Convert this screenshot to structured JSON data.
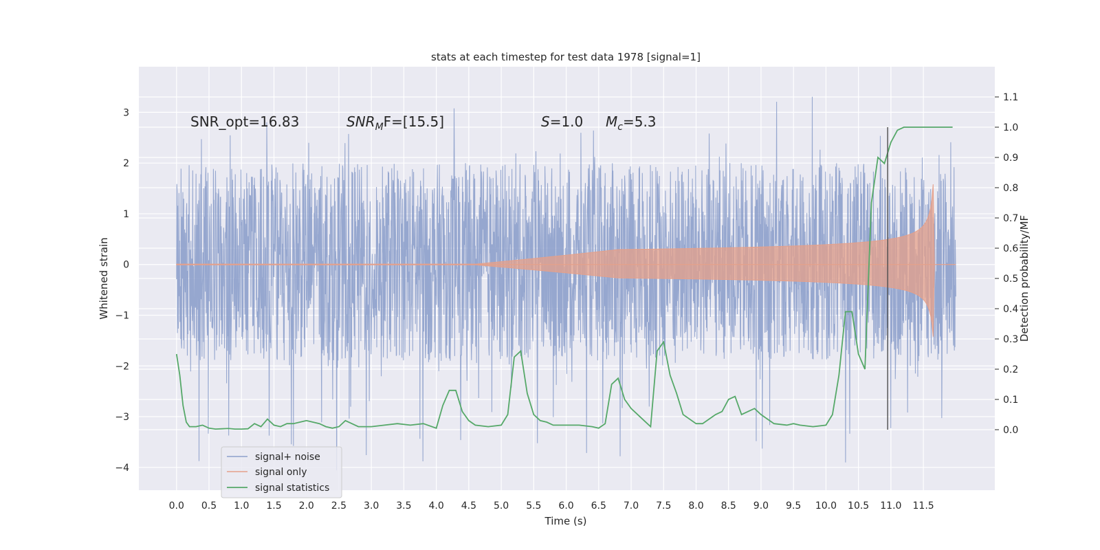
{
  "chart_data": {
    "type": "line",
    "title": "stats at each timestep for test data 1978 [signal=1]",
    "xlabel": "Time (s)",
    "ylabel": "Whitened strain",
    "ylabel_right": "Detection probability/MF",
    "xlim": [
      -0.58,
      12.6
    ],
    "ylim": [
      -4.45,
      3.9
    ],
    "ylim_right": [
      -0.2,
      1.2
    ],
    "grid": true,
    "legend_placement": "lower-left",
    "x_ticks": [
      "0.0",
      "0.5",
      "1.0",
      "1.5",
      "2.0",
      "2.5",
      "3.0",
      "3.5",
      "4.0",
      "4.5",
      "5.0",
      "5.5",
      "6.0",
      "6.5",
      "7.0",
      "7.5",
      "8.0",
      "8.5",
      "9.0",
      "9.5",
      "10.0",
      "10.5",
      "11.0",
      "11.5"
    ],
    "y_ticks": [
      "3",
      "2",
      "1",
      "0",
      "−1",
      "−2",
      "−3",
      "−4"
    ],
    "y_ticks_right": [
      "1.1",
      "1.0",
      "0.9",
      "0.8",
      "0.7",
      "0.6",
      "0.5",
      "0.4",
      "0.3",
      "0.2",
      "0.1",
      "0.0"
    ],
    "annotations": {
      "snr_opt": "SNR_opt=16.83",
      "snr_mf_main": "SNR",
      "snr_mf_sub": "M",
      "snr_mf_rest": "F=[15.5]",
      "s_sym": "S",
      "s_val": "=1.0",
      "mc_sym": "M",
      "mc_sub": "c",
      "mc_val": "=5.3"
    },
    "series": [
      {
        "name": "signal+ noise",
        "color": "#8da0cb",
        "axis": "left",
        "duration": 12.0,
        "envelope": {
          "typical_low": -1.8,
          "typical_high": 2.2,
          "peak_high": 3.5,
          "peak_low": -4.1
        }
      },
      {
        "name": "signal only",
        "color": "#e5a08a",
        "axis": "left",
        "chirp_start": 5.0,
        "merger_time": 11.67,
        "peak_amplitude": 1.8
      },
      {
        "name": "signal statistics",
        "color": "#55a868",
        "axis": "right",
        "x": [
          0.0,
          0.05,
          0.1,
          0.15,
          0.2,
          0.3,
          0.4,
          0.5,
          0.6,
          0.7,
          0.8,
          0.9,
          1.0,
          1.1,
          1.2,
          1.3,
          1.4,
          1.5,
          1.6,
          1.7,
          1.8,
          1.9,
          2.0,
          2.1,
          2.2,
          2.3,
          2.4,
          2.5,
          2.6,
          2.7,
          2.8,
          2.9,
          3.0,
          3.2,
          3.4,
          3.6,
          3.8,
          4.0,
          4.1,
          4.2,
          4.3,
          4.4,
          4.5,
          4.6,
          4.8,
          5.0,
          5.1,
          5.2,
          5.3,
          5.4,
          5.5,
          5.6,
          5.7,
          5.8,
          6.0,
          6.2,
          6.4,
          6.5,
          6.6,
          6.7,
          6.8,
          6.9,
          7.0,
          7.2,
          7.3,
          7.4,
          7.5,
          7.6,
          7.7,
          7.8,
          8.0,
          8.1,
          8.2,
          8.3,
          8.4,
          8.5,
          8.6,
          8.7,
          8.8,
          8.9,
          9.0,
          9.2,
          9.4,
          9.5,
          9.6,
          9.8,
          10.0,
          10.1,
          10.2,
          10.3,
          10.4,
          10.5,
          10.6,
          10.7,
          10.8,
          10.9,
          11.0,
          11.1,
          11.2,
          11.3,
          11.5,
          11.7,
          11.8,
          11.95
        ],
        "y": [
          0.25,
          0.18,
          0.08,
          0.025,
          0.01,
          0.01,
          0.015,
          0.005,
          0.002,
          0.003,
          0.004,
          0.002,
          0.002,
          0.003,
          0.02,
          0.01,
          0.035,
          0.015,
          0.01,
          0.02,
          0.02,
          0.025,
          0.03,
          0.025,
          0.02,
          0.01,
          0.005,
          0.01,
          0.03,
          0.02,
          0.01,
          0.01,
          0.01,
          0.015,
          0.02,
          0.015,
          0.02,
          0.005,
          0.08,
          0.13,
          0.13,
          0.06,
          0.03,
          0.015,
          0.01,
          0.015,
          0.05,
          0.24,
          0.26,
          0.12,
          0.05,
          0.03,
          0.025,
          0.015,
          0.015,
          0.015,
          0.01,
          0.005,
          0.02,
          0.15,
          0.17,
          0.1,
          0.07,
          0.03,
          0.01,
          0.26,
          0.29,
          0.18,
          0.12,
          0.05,
          0.02,
          0.02,
          0.035,
          0.05,
          0.06,
          0.1,
          0.11,
          0.05,
          0.06,
          0.07,
          0.05,
          0.02,
          0.015,
          0.02,
          0.015,
          0.01,
          0.015,
          0.05,
          0.18,
          0.39,
          0.39,
          0.25,
          0.2,
          0.75,
          0.9,
          0.88,
          0.95,
          0.99,
          1.0,
          1.0,
          1.0,
          1.0,
          1.0,
          1.0
        ]
      }
    ],
    "vertical_line": {
      "x": 10.95,
      "color": "#4d4d4d"
    }
  }
}
